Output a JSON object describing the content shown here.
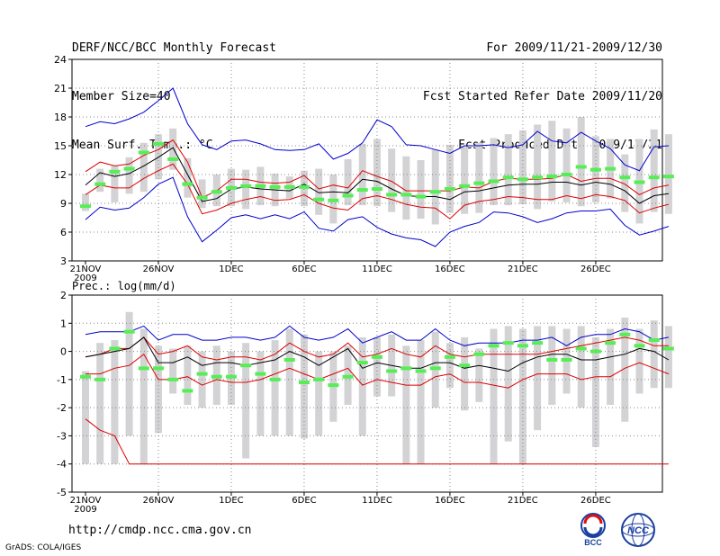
{
  "header": {
    "title": "DERF/NCC/BCC Monthly Forecast",
    "member_size": "Member Size=40",
    "variable": "Mean Surf. Temp.: °C",
    "period": "For 2009/11/21-2009/12/30",
    "started": "Fcst Started Refer Date 2009/11/20",
    "produced": "Fcst Produced Date 2009/11/21"
  },
  "footer": {
    "url": "http://cmdp.ncc.cma.gov.cn",
    "grads": "GrADS: COLA/IGES",
    "logo_bcc": "BCC",
    "logo_ncc": "NCC"
  },
  "colors": {
    "ensemble_max": "#0000cc",
    "ensemble_min": "#0000cc",
    "spread_upper": "#dd0000",
    "spread_lower": "#dd0000",
    "ensemble_mean": "#000000",
    "climatology": "#55ee55",
    "range_bar": "#d3d3d6",
    "grid": "#888888"
  },
  "chart_data": [
    {
      "type": "line",
      "panel": "temperature",
      "title": "Mean Surf. Temp.: °C",
      "ylim": [
        3,
        24
      ],
      "y_ticks": [
        3,
        6,
        9,
        12,
        15,
        18,
        21,
        24
      ],
      "x_tick_labels": [
        "21NOV",
        "26NOV",
        "1DEC",
        "6DEC",
        "11DEC",
        "16DEC",
        "21DEC",
        "26DEC"
      ],
      "x_year_label": "2009",
      "days": 40,
      "series": [
        {
          "name": "ensemble max",
          "color": "#0000cc",
          "values": [
            17.0,
            17.5,
            17.3,
            17.8,
            18.5,
            19.7,
            21.0,
            17.3,
            15.1,
            14.6,
            15.5,
            15.6,
            15.2,
            14.6,
            14.5,
            14.6,
            15.2,
            13.6,
            14.2,
            15.3,
            17.7,
            17.0,
            15.1,
            15.0,
            14.6,
            14.2,
            15.0,
            15.0,
            15.1,
            14.8,
            15.1,
            16.5,
            15.5,
            15.3,
            16.4,
            15.5,
            14.7,
            13.0,
            12.4,
            14.9,
            15.0
          ]
        },
        {
          "name": "upper spread",
          "color": "#dd0000",
          "values": [
            12.3,
            13.3,
            12.9,
            13.1,
            14.0,
            14.6,
            15.6,
            13.3,
            9.6,
            10.3,
            11.5,
            11.5,
            11.2,
            11.1,
            11.2,
            11.9,
            10.5,
            10.9,
            10.6,
            12.4,
            11.8,
            11.3,
            10.3,
            10.3,
            10.3,
            10.3,
            10.7,
            10.6,
            11.3,
            11.6,
            11.5,
            11.5,
            11.6,
            12.0,
            11.3,
            11.6,
            11.6,
            11.0,
            9.9,
            10.6,
            10.9
          ]
        },
        {
          "name": "ensemble mean",
          "color": "#000000",
          "values": [
            10.9,
            12.2,
            11.8,
            12.1,
            12.9,
            13.8,
            14.8,
            12.0,
            9.2,
            9.5,
            10.5,
            10.7,
            10.5,
            10.4,
            10.3,
            11.0,
            10.1,
            10.2,
            10.1,
            11.5,
            11.3,
            10.5,
            9.8,
            9.7,
            9.7,
            9.4,
            10.2,
            10.3,
            10.6,
            10.9,
            11.0,
            11.0,
            11.2,
            11.2,
            10.9,
            11.2,
            11.0,
            10.3,
            9.0,
            9.8,
            10.0
          ]
        },
        {
          "name": "lower spread",
          "color": "#dd0000",
          "values": [
            9.9,
            10.9,
            10.6,
            10.6,
            11.6,
            12.4,
            13.1,
            11.0,
            7.9,
            8.3,
            9.0,
            9.4,
            9.7,
            9.3,
            9.4,
            9.9,
            9.0,
            8.5,
            8.3,
            9.5,
            9.8,
            9.4,
            8.9,
            8.6,
            8.5,
            7.4,
            8.8,
            9.2,
            9.4,
            9.7,
            9.6,
            9.4,
            9.4,
            9.8,
            9.5,
            9.9,
            9.7,
            9.3,
            8.0,
            8.5,
            8.9
          ]
        },
        {
          "name": "ensemble min",
          "color": "#0000cc",
          "values": [
            7.3,
            8.6,
            8.3,
            8.5,
            9.6,
            11.0,
            11.7,
            7.6,
            5.0,
            6.2,
            7.5,
            7.8,
            7.4,
            7.8,
            7.4,
            8.1,
            6.4,
            6.1,
            7.3,
            7.6,
            6.5,
            5.8,
            5.4,
            5.2,
            4.5,
            6.0,
            6.6,
            7.0,
            8.1,
            8.0,
            7.6,
            7.0,
            7.4,
            8.0,
            8.2,
            8.2,
            8.4,
            6.7,
            5.7,
            6.1,
            6.6
          ]
        },
        {
          "name": "climatology",
          "color": "#55ee55",
          "values": [
            8.7,
            11.0,
            12.3,
            12.6,
            14.3,
            15.2,
            13.6,
            11.0,
            9.6,
            10.2,
            10.6,
            10.8,
            10.8,
            10.7,
            10.7,
            10.7,
            9.4,
            9.3,
            9.8,
            10.4,
            10.5,
            9.9,
            9.9,
            9.7,
            10.2,
            10.5,
            10.8,
            11.1,
            11.3,
            11.7,
            11.5,
            11.7,
            11.8,
            12.0,
            12.8,
            12.5,
            12.6,
            11.7,
            11.2,
            11.7,
            11.8
          ]
        }
      ],
      "range_bars": {
        "low": [
          8.2,
          10.2,
          9.1,
          10.0,
          10.2,
          11.5,
          12.5,
          9.6,
          8.5,
          8.7,
          8.7,
          8.4,
          8.8,
          8.7,
          9.5,
          8.7,
          7.8,
          6.9,
          8.8,
          8.8,
          8.7,
          8.1,
          7.3,
          7.4,
          6.8,
          8.0,
          7.9,
          8.0,
          8.8,
          8.8,
          8.9,
          8.4,
          9.2,
          9.1,
          8.7,
          9.1,
          9.5,
          8.1,
          6.9,
          8.1,
          7.9
        ],
        "high": [
          10.0,
          12.6,
          12.9,
          13.8,
          15.3,
          16.2,
          16.8,
          13.7,
          11.5,
          12.0,
          12.6,
          12.5,
          12.8,
          12.1,
          11.8,
          12.4,
          12.6,
          12.0,
          13.6,
          15.2,
          15.7,
          14.7,
          13.9,
          13.5,
          14.6,
          15.1,
          14.9,
          15.3,
          15.8,
          16.2,
          16.6,
          17.2,
          17.6,
          16.8,
          18.0,
          16.0,
          15.7,
          14.1,
          15.7,
          16.7,
          16.2
        ]
      }
    },
    {
      "type": "line",
      "panel": "precipitation",
      "title": "Prec.: log(mm/d)",
      "ylim": [
        -5,
        2
      ],
      "y_ticks": [
        -5,
        -4,
        -3,
        -2,
        -1,
        0,
        1,
        2
      ],
      "x_tick_labels": [
        "21NOV",
        "26NOV",
        "1DEC",
        "6DEC",
        "11DEC",
        "16DEC",
        "21DEC",
        "26DEC"
      ],
      "x_year_label": "2009",
      "days": 40,
      "series": [
        {
          "name": "ensemble max",
          "color": "#0000cc",
          "values": [
            0.6,
            0.7,
            0.7,
            0.7,
            0.9,
            0.4,
            0.6,
            0.6,
            0.4,
            0.4,
            0.5,
            0.5,
            0.4,
            0.5,
            0.9,
            0.5,
            0.4,
            0.5,
            0.8,
            0.3,
            0.5,
            0.7,
            0.4,
            0.4,
            0.8,
            0.4,
            0.2,
            0.3,
            0.3,
            0.3,
            0.4,
            0.4,
            0.5,
            0.2,
            0.5,
            0.6,
            0.6,
            0.8,
            0.7,
            0.4,
            0.5
          ]
        },
        {
          "name": "upper spread",
          "color": "#dd0000",
          "values": [
            -0.2,
            -0.1,
            0.1,
            0.1,
            0.5,
            -0.1,
            0.0,
            0.2,
            -0.2,
            -0.3,
            -0.2,
            -0.2,
            -0.3,
            -0.1,
            0.3,
            0.0,
            -0.2,
            -0.1,
            0.3,
            -0.2,
            -0.1,
            0.1,
            -0.1,
            -0.2,
            0.2,
            -0.1,
            -0.2,
            -0.1,
            -0.1,
            -0.1,
            -0.1,
            -0.1,
            0.0,
            0.1,
            0.2,
            0.3,
            0.4,
            0.5,
            0.4,
            0.2,
            0.2
          ]
        },
        {
          "name": "ensemble mean",
          "color": "#000000",
          "values": [
            -0.2,
            -0.1,
            0.0,
            0.1,
            0.5,
            -0.4,
            -0.4,
            -0.2,
            -0.5,
            -0.4,
            -0.4,
            -0.5,
            -0.4,
            -0.3,
            0.0,
            -0.2,
            -0.5,
            -0.2,
            0.1,
            -0.6,
            -0.4,
            -0.5,
            -0.6,
            -0.6,
            -0.4,
            -0.4,
            -0.6,
            -0.5,
            -0.6,
            -0.7,
            -0.4,
            -0.2,
            -0.1,
            -0.1,
            -0.3,
            -0.3,
            -0.2,
            -0.1,
            0.1,
            0.0,
            -0.3
          ]
        },
        {
          "name": "lower spread",
          "color": "#dd0000",
          "values": [
            -0.8,
            -0.8,
            -0.6,
            -0.5,
            -0.1,
            -1.0,
            -1.0,
            -0.9,
            -1.2,
            -1.0,
            -1.1,
            -1.1,
            -1.0,
            -0.8,
            -0.6,
            -0.8,
            -1.0,
            -0.8,
            -0.6,
            -1.2,
            -1.0,
            -1.1,
            -1.2,
            -1.2,
            -0.9,
            -0.8,
            -1.1,
            -1.1,
            -1.2,
            -1.3,
            -1.0,
            -0.8,
            -0.8,
            -0.8,
            -1.0,
            -0.9,
            -0.9,
            -0.6,
            -0.4,
            -0.6,
            -0.8
          ]
        },
        {
          "name": "ensemble min",
          "color": "#dd0000",
          "values": [
            -2.4,
            -2.8,
            -3.0,
            -4.0,
            -4.0,
            -4.0,
            -4.0,
            -4.0,
            -4.0,
            -4.0,
            -4.0,
            -4.0,
            -4.0,
            -4.0,
            -4.0,
            -4.0,
            -4.0,
            -4.0,
            -4.0,
            -4.0,
            -4.0,
            -4.0,
            -4.0,
            -4.0,
            -4.0,
            -4.0,
            -4.0,
            -4.0,
            -4.0,
            -4.0,
            -4.0,
            -4.0,
            -4.0,
            -4.0,
            -4.0,
            -4.0,
            -4.0,
            -4.0,
            -4.0,
            -4.0,
            -4.0
          ]
        },
        {
          "name": "climatology",
          "color": "#55ee55",
          "values": [
            -0.9,
            -1.0,
            0.1,
            0.7,
            -0.6,
            -0.6,
            -1.0,
            -1.4,
            -0.8,
            -0.9,
            -0.9,
            -0.5,
            -0.8,
            -1.0,
            -0.3,
            -1.1,
            -1.0,
            -1.2,
            -0.9,
            -0.4,
            -0.2,
            -0.7,
            -0.6,
            -0.7,
            -0.6,
            -0.2,
            -0.5,
            -0.1,
            0.2,
            0.3,
            0.2,
            0.3,
            -0.3,
            -0.3,
            0.1,
            0.0,
            0.3,
            0.6,
            0.2,
            0.4,
            0.1
          ]
        }
      ],
      "range_bars": {
        "low": [
          -4.0,
          -4.0,
          -4.0,
          -3.0,
          -4.0,
          -2.9,
          -1.5,
          -1.9,
          -2.0,
          -1.9,
          -1.9,
          -3.8,
          -3.0,
          -3.0,
          -3.0,
          -3.1,
          -3.0,
          -2.5,
          -1.9,
          -3.0,
          -1.6,
          -1.6,
          -4.0,
          -4.0,
          -2.0,
          -1.3,
          -2.1,
          -1.8,
          -4.0,
          -3.2,
          -4.0,
          -2.8,
          -1.9,
          -1.5,
          -2.0,
          -3.4,
          -1.9,
          -2.5,
          -1.5,
          -1.3,
          -1.3
        ],
        "high": [
          -0.7,
          0.3,
          0.4,
          1.4,
          0.8,
          0.2,
          0.1,
          0.2,
          0.0,
          0.2,
          0.0,
          0.3,
          0.0,
          0.4,
          0.8,
          0.6,
          0.0,
          0.0,
          0.2,
          0.5,
          0.5,
          0.6,
          0.2,
          0.4,
          0.7,
          0.3,
          0.5,
          0.1,
          0.8,
          0.9,
          0.8,
          0.9,
          0.9,
          0.8,
          0.9,
          0.5,
          0.8,
          1.2,
          0.8,
          1.1,
          0.9
        ]
      }
    }
  ]
}
